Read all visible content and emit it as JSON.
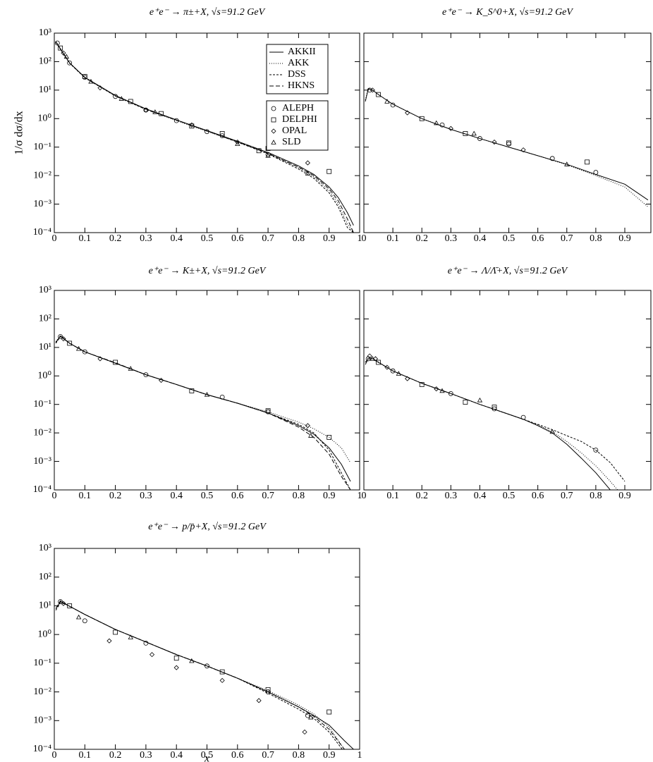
{
  "chart_data": [
    {
      "type": "line",
      "title": "e⁺e⁻ → π±+X, √s=91.2 GeV",
      "y_label": "1/σ dσ/dx",
      "log_y": true,
      "legend": "upper right",
      "xlim": [
        0,
        1
      ],
      "ylim": [
        0.0001,
        1000
      ],
      "xticks": [
        0,
        0.1,
        0.2,
        0.3,
        0.4,
        0.5,
        0.6,
        0.7,
        0.8,
        0.9,
        1
      ],
      "yticks": [
        {
          "value": 0.0001,
          "label": "10⁻⁴"
        },
        {
          "value": 0.001,
          "label": "10⁻³"
        },
        {
          "value": 0.01,
          "label": "10⁻²"
        },
        {
          "value": 0.1,
          "label": "10⁻¹"
        },
        {
          "value": 1,
          "label": "10⁰"
        },
        {
          "value": 10,
          "label": "10¹"
        },
        {
          "value": 100,
          "label": "10²"
        },
        {
          "value": 1000,
          "label": "10³"
        }
      ],
      "x": [
        0.005,
        0.02,
        0.05,
        0.1,
        0.2,
        0.3,
        0.4,
        0.5,
        0.6,
        0.7,
        0.8,
        0.85,
        0.9,
        0.93,
        0.96,
        0.98
      ],
      "series": [
        {
          "name": "AKKII",
          "dash": "none",
          "color": "#000000",
          "values": [
            500,
            280,
            90,
            28,
            6.5,
            2.2,
            0.9,
            0.38,
            0.16,
            0.065,
            0.022,
            0.011,
            0.004,
            0.0017,
            0.0005,
            0.00018
          ]
        },
        {
          "name": "AKK",
          "dash": "1,2",
          "color": "#000000",
          "values": [
            520,
            290,
            92,
            28,
            6.3,
            2.1,
            0.85,
            0.36,
            0.15,
            0.06,
            0.019,
            0.009,
            0.003,
            0.001,
            0.0002,
            0.0001
          ]
        },
        {
          "name": "DSS",
          "dash": "3,2",
          "color": "#000000",
          "values": [
            480,
            270,
            88,
            27,
            6.2,
            2.1,
            0.88,
            0.37,
            0.15,
            0.058,
            0.017,
            0.008,
            0.0025,
            0.0008,
            0.00015,
            0.0001
          ]
        },
        {
          "name": "HKNS",
          "dash": "6,3",
          "color": "#000000",
          "values": [
            490,
            280,
            90,
            28,
            6.4,
            2.2,
            0.9,
            0.37,
            0.155,
            0.06,
            0.02,
            0.01,
            0.0035,
            0.0013,
            0.0003,
            0.0001
          ]
        }
      ],
      "points": [
        {
          "name": "ALEPH",
          "marker": "circle",
          "x": [
            0.01,
            0.05,
            0.1,
            0.2,
            0.3,
            0.4,
            0.5,
            0.55,
            0.7
          ],
          "values": [
            450,
            90,
            28,
            6,
            2,
            0.85,
            0.35,
            0.25,
            0.055
          ]
        },
        {
          "name": "DELPHI",
          "marker": "square",
          "x": [
            0.02,
            0.1,
            0.25,
            0.35,
            0.45,
            0.55,
            0.67,
            0.7,
            0.9
          ],
          "values": [
            300,
            30,
            4,
            1.5,
            0.55,
            0.3,
            0.075,
            0.09,
            0.014
          ]
        },
        {
          "name": "OPAL",
          "marker": "diamond",
          "x": [
            0.03,
            0.15,
            0.3,
            0.45,
            0.6,
            0.83
          ],
          "values": [
            200,
            12,
            2,
            0.6,
            0.15,
            0.028
          ]
        },
        {
          "name": "SLD",
          "marker": "triangle",
          "x": [
            0.04,
            0.12,
            0.22,
            0.33,
            0.6,
            0.7,
            0.83
          ],
          "values": [
            150,
            20,
            5,
            1.7,
            0.13,
            0.05,
            0.012
          ]
        }
      ]
    },
    {
      "type": "line",
      "title": "e⁺e⁻ → K_S^0+X, √s=91.2 GeV",
      "log_y": true,
      "xlim": [
        0,
        0.99
      ],
      "ylim": [
        0.0001,
        1000
      ],
      "xticks": [
        0,
        0.1,
        0.2,
        0.3,
        0.4,
        0.5,
        0.6,
        0.7,
        0.8,
        0.9
      ],
      "yticks": [
        0.0001,
        0.001,
        0.01,
        0.1,
        1,
        10,
        100,
        1000
      ],
      "x": [
        0.005,
        0.015,
        0.03,
        0.05,
        0.1,
        0.2,
        0.3,
        0.4,
        0.5,
        0.6,
        0.7,
        0.8,
        0.9,
        0.98
      ],
      "series": [
        {
          "dash": "none",
          "color": "#000000",
          "values": [
            4,
            11,
            10,
            7,
            3.2,
            1,
            0.42,
            0.2,
            0.1,
            0.05,
            0.025,
            0.011,
            0.005,
            0.0014
          ]
        },
        {
          "dash": "1,2",
          "color": "#000000",
          "values": [
            4.5,
            11.5,
            10,
            7,
            3.2,
            1,
            0.42,
            0.2,
            0.1,
            0.05,
            0.024,
            0.01,
            0.004,
            0.0008
          ]
        }
      ],
      "points": [
        {
          "marker": "circle",
          "x": [
            0.02,
            0.1,
            0.27,
            0.4,
            0.5,
            0.65,
            0.8
          ],
          "values": [
            10,
            3,
            0.6,
            0.2,
            0.13,
            0.04,
            0.013
          ]
        },
        {
          "marker": "square",
          "x": [
            0.05,
            0.2,
            0.35,
            0.5,
            0.77
          ],
          "values": [
            7,
            1,
            0.3,
            0.14,
            0.03
          ]
        },
        {
          "marker": "diamond",
          "x": [
            0.03,
            0.15,
            0.3,
            0.45,
            0.55
          ],
          "values": [
            10,
            1.6,
            0.45,
            0.15,
            0.08
          ]
        },
        {
          "marker": "triangle",
          "x": [
            0.08,
            0.25,
            0.38,
            0.7
          ],
          "values": [
            4,
            0.7,
            0.3,
            0.025
          ]
        }
      ]
    },
    {
      "type": "line",
      "title": "e⁺e⁻ → K±+X, √s=91.2 GeV",
      "log_y": true,
      "xlim": [
        0,
        1
      ],
      "ylim": [
        0.0001,
        1000
      ],
      "xticks": [
        0,
        0.1,
        0.2,
        0.3,
        0.4,
        0.5,
        0.6,
        0.7,
        0.8,
        0.9,
        1
      ],
      "yticks": [
        {
          "value": 0.0001,
          "label": "10⁻⁴"
        },
        {
          "value": 0.001,
          "label": "10⁻³"
        },
        {
          "value": 0.01,
          "label": "10⁻²"
        },
        {
          "value": 0.1,
          "label": "10⁻¹"
        },
        {
          "value": 1,
          "label": "10⁰"
        },
        {
          "value": 10,
          "label": "10¹"
        },
        {
          "value": 100,
          "label": "10²"
        },
        {
          "value": 1000,
          "label": "10³"
        }
      ],
      "x": [
        0.005,
        0.02,
        0.05,
        0.1,
        0.2,
        0.3,
        0.4,
        0.5,
        0.6,
        0.7,
        0.8,
        0.85,
        0.9,
        0.94,
        0.97
      ],
      "series": [
        {
          "dash": "none",
          "color": "#000000",
          "values": [
            15,
            25,
            14,
            7,
            2.8,
            1.1,
            0.5,
            0.22,
            0.11,
            0.05,
            0.018,
            0.009,
            0.003,
            0.0008,
            0.0002
          ]
        },
        {
          "dash": "1,2",
          "color": "#000000",
          "values": [
            16,
            26,
            14,
            7,
            2.8,
            1.1,
            0.5,
            0.22,
            0.11,
            0.055,
            0.024,
            0.014,
            0.007,
            0.003,
            0.0009
          ]
        },
        {
          "dash": "3,2",
          "color": "#000000",
          "values": [
            14,
            24,
            14,
            7,
            2.8,
            1.1,
            0.5,
            0.22,
            0.11,
            0.05,
            0.02,
            0.01,
            0.0025,
            0.0004,
            0.0001
          ]
        },
        {
          "dash": "6,3",
          "color": "#000000",
          "values": [
            15,
            25,
            14,
            7,
            2.9,
            1.1,
            0.5,
            0.22,
            0.11,
            0.05,
            0.016,
            0.007,
            0.0018,
            0.0003,
            0.0001
          ]
        }
      ],
      "points": [
        {
          "marker": "circle",
          "x": [
            0.02,
            0.1,
            0.3,
            0.55,
            0.7
          ],
          "values": [
            24,
            7,
            1.1,
            0.18,
            0.055
          ]
        },
        {
          "marker": "square",
          "x": [
            0.05,
            0.2,
            0.45,
            0.7,
            0.9
          ],
          "values": [
            14,
            3,
            0.3,
            0.06,
            0.007
          ]
        },
        {
          "marker": "diamond",
          "x": [
            0.03,
            0.15,
            0.35,
            0.83
          ],
          "values": [
            20,
            4,
            0.7,
            0.018
          ]
        },
        {
          "marker": "triangle",
          "x": [
            0.08,
            0.25,
            0.5,
            0.84
          ],
          "values": [
            9,
            1.8,
            0.22,
            0.008
          ]
        }
      ]
    },
    {
      "type": "line",
      "title": "e⁺e⁻ → Λ/Λ̄+X, √s=91.2 GeV",
      "log_y": true,
      "xlim": [
        0,
        0.99
      ],
      "ylim": [
        0.0001,
        1000
      ],
      "xticks": [
        0,
        0.1,
        0.2,
        0.3,
        0.4,
        0.5,
        0.6,
        0.7,
        0.8,
        0.9
      ],
      "yticks": [
        0.0001,
        0.001,
        0.01,
        0.1,
        1,
        10,
        100,
        1000
      ],
      "x": [
        0.005,
        0.015,
        0.03,
        0.05,
        0.1,
        0.2,
        0.3,
        0.4,
        0.5,
        0.55,
        0.6,
        0.65,
        0.7,
        0.75,
        0.8,
        0.85,
        0.9
      ],
      "series": [
        {
          "dash": "none",
          "color": "#000000",
          "values": [
            2.5,
            4,
            4,
            3,
            1.5,
            0.55,
            0.24,
            0.1,
            0.045,
            0.03,
            0.018,
            0.01,
            0.004,
            0.0013,
            0.0004,
            0.0001,
            1e-05
          ]
        },
        {
          "dash": "1,2",
          "color": "#000000",
          "values": [
            3,
            4.5,
            4.2,
            3.1,
            1.5,
            0.55,
            0.24,
            0.1,
            0.045,
            0.03,
            0.019,
            0.011,
            0.005,
            0.002,
            0.0007,
            0.0002,
            5e-05
          ]
        },
        {
          "dash": "3,2",
          "color": "#000000",
          "values": [
            3,
            4,
            4,
            3,
            1.5,
            0.55,
            0.24,
            0.1,
            0.045,
            0.03,
            0.02,
            0.013,
            0.008,
            0.005,
            0.0025,
            0.0009,
            0.0002
          ]
        }
      ],
      "points": [
        {
          "marker": "circle",
          "x": [
            0.015,
            0.1,
            0.3,
            0.45,
            0.55,
            0.8
          ],
          "values": [
            4,
            1.5,
            0.24,
            0.07,
            0.035,
            0.0025
          ]
        },
        {
          "marker": "square",
          "x": [
            0.05,
            0.2,
            0.35,
            0.45
          ],
          "values": [
            3,
            0.5,
            0.12,
            0.08
          ]
        },
        {
          "marker": "diamond",
          "x": [
            0.02,
            0.04,
            0.08,
            0.15,
            0.25
          ],
          "values": [
            5,
            4,
            2,
            0.8,
            0.35
          ]
        },
        {
          "marker": "triangle",
          "x": [
            0.03,
            0.12,
            0.27,
            0.4,
            0.65
          ],
          "values": [
            4,
            1.2,
            0.3,
            0.14,
            0.011
          ]
        }
      ]
    },
    {
      "type": "line",
      "title": "e⁺e⁻ → p/p̄+X, √s=91.2 GeV",
      "x_label": "x",
      "log_y": true,
      "xlim": [
        0,
        1
      ],
      "ylim": [
        0.0001,
        1000
      ],
      "xticks": [
        0,
        0.1,
        0.2,
        0.3,
        0.4,
        0.5,
        0.6,
        0.7,
        0.8,
        0.9,
        1
      ],
      "yticks": [
        {
          "value": 0.0001,
          "label": "10⁻⁴"
        },
        {
          "value": 0.001,
          "label": "10⁻³"
        },
        {
          "value": 0.01,
          "label": "10⁻²"
        },
        {
          "value": 0.1,
          "label": "10⁻¹"
        },
        {
          "value": 1,
          "label": "10⁰"
        },
        {
          "value": 10,
          "label": "10¹"
        },
        {
          "value": 100,
          "label": "10²"
        },
        {
          "value": 1000,
          "label": "10³"
        }
      ],
      "x": [
        0.005,
        0.02,
        0.04,
        0.1,
        0.2,
        0.3,
        0.4,
        0.5,
        0.6,
        0.7,
        0.8,
        0.85,
        0.9,
        0.95,
        0.98
      ],
      "series": [
        {
          "dash": "none",
          "color": "#000000",
          "values": [
            8,
            14,
            11,
            5,
            1.5,
            0.55,
            0.2,
            0.08,
            0.03,
            0.01,
            0.003,
            0.0015,
            0.0007,
            0.0002,
            0.0001
          ]
        },
        {
          "dash": "1,2",
          "color": "#000000",
          "values": [
            8,
            14,
            11,
            5,
            1.5,
            0.55,
            0.2,
            0.08,
            0.03,
            0.011,
            0.0035,
            0.0017,
            0.0006,
            0.0001,
            3e-05
          ]
        },
        {
          "dash": "3,2",
          "color": "#000000",
          "values": [
            7,
            13,
            11,
            5,
            1.5,
            0.55,
            0.2,
            0.08,
            0.03,
            0.009,
            0.0025,
            0.0012,
            0.0004,
            8e-05,
            2e-05
          ]
        },
        {
          "dash": "6,3",
          "color": "#000000",
          "values": [
            8,
            15,
            11,
            5,
            1.5,
            0.55,
            0.2,
            0.08,
            0.03,
            0.01,
            0.003,
            0.0014,
            0.0005,
            0.0001,
            3e-05
          ]
        }
      ],
      "points": [
        {
          "marker": "circle",
          "x": [
            0.02,
            0.1,
            0.3,
            0.5,
            0.7,
            0.83
          ],
          "values": [
            14,
            3,
            0.5,
            0.08,
            0.01,
            0.0015
          ]
        },
        {
          "marker": "square",
          "x": [
            0.05,
            0.2,
            0.4,
            0.55,
            0.7,
            0.9
          ],
          "values": [
            10,
            1.2,
            0.15,
            0.05,
            0.012,
            0.002
          ]
        },
        {
          "marker": "diamond",
          "x": [
            0.03,
            0.18,
            0.32,
            0.4,
            0.55,
            0.67,
            0.82
          ],
          "values": [
            12,
            0.6,
            0.2,
            0.07,
            0.025,
            0.005,
            0.0004
          ]
        },
        {
          "marker": "triangle",
          "x": [
            0.08,
            0.25,
            0.45,
            0.84
          ],
          "values": [
            4,
            0.8,
            0.12,
            0.0013
          ]
        }
      ]
    }
  ]
}
